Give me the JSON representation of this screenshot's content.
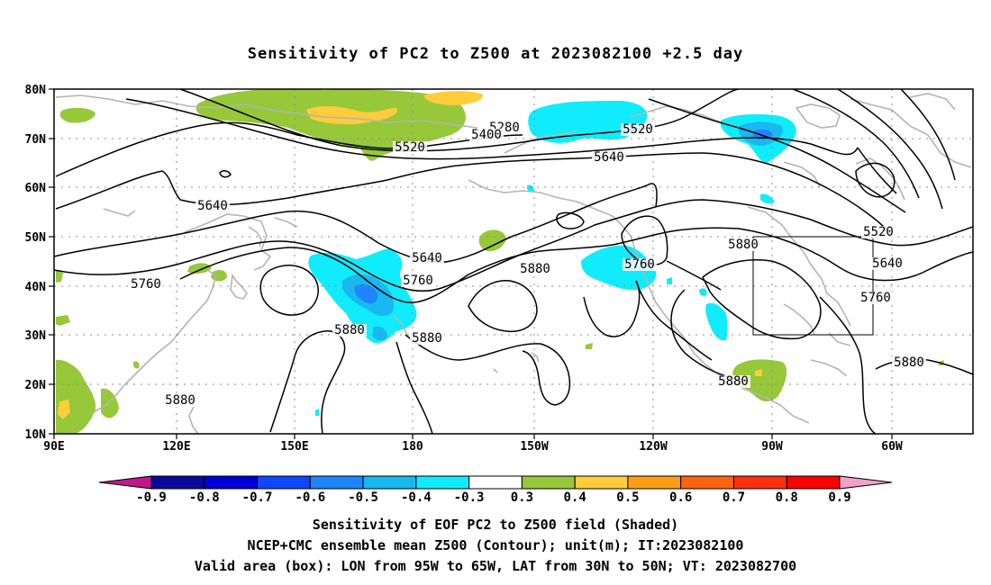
{
  "title": "Sensitivity of PC2 to Z500 at 2023082100 +2.5 day",
  "lat_labels": [
    "80N",
    "70N",
    "60N",
    "50N",
    "40N",
    "30N",
    "20N",
    "10N"
  ],
  "lon_labels": [
    "90E",
    "120E",
    "150E",
    "180",
    "150W",
    "120W",
    "90W",
    "60W"
  ],
  "contour_labels": [
    {
      "text": "5280"
    },
    {
      "text": "5400"
    },
    {
      "text": "5520"
    },
    {
      "text": "5520"
    },
    {
      "text": "5640"
    },
    {
      "text": "5640"
    },
    {
      "text": "5520"
    },
    {
      "text": "5640"
    },
    {
      "text": "5760"
    },
    {
      "text": "5640"
    },
    {
      "text": "5760"
    },
    {
      "text": "5880"
    },
    {
      "text": "5760"
    },
    {
      "text": "5880"
    },
    {
      "text": "5760"
    },
    {
      "text": "5880"
    },
    {
      "text": "5880"
    },
    {
      "text": "5880"
    },
    {
      "text": "5880"
    },
    {
      "text": "5880"
    }
  ],
  "colorbar": {
    "labels": [
      "-0.9",
      "-0.8",
      "-0.7",
      "-0.6",
      "-0.5",
      "-0.4",
      "-0.3",
      "0.3",
      "0.4",
      "0.5",
      "0.6",
      "0.7",
      "0.8",
      "0.9"
    ],
    "colors": [
      "#0a0a9a",
      "#0000d8",
      "#1046ff",
      "#1e84ff",
      "#18b8f0",
      "#10ecfc",
      "#ffffff",
      "#96c83a",
      "#ffcc3a",
      "#ff9e14",
      "#ff6210",
      "#ff3010",
      "#ff0000"
    ],
    "low_extend_color": "#c0198c",
    "high_extend_color": "#f5a0cc"
  },
  "captions": {
    "line1": "Sensitivity of EOF PC2 to Z500 field (Shaded)",
    "line2": "NCEP+CMC ensemble mean Z500 (Contour); unit(m); IT:2023082100",
    "line3": "Valid area (box): LON from 95W to 65W, LAT from 30N to 50N; VT: 2023082700"
  },
  "colors": {
    "land_outline": "#b4b4b4",
    "grid": "#8c8c8c",
    "contour": "#000000"
  }
}
